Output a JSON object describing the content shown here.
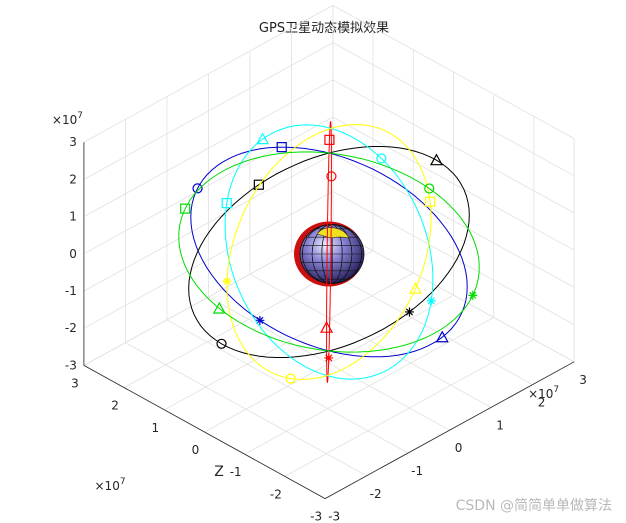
{
  "chart_data": {
    "type": "scatter",
    "title": "GPS卫星动态模拟效果",
    "xlabel": "",
    "ylabel": "",
    "zlabel": "Z",
    "axis_exponent": "×10^7",
    "xlim": [
      -3,
      3
    ],
    "ylim": [
      -3,
      3
    ],
    "zlim": [
      -3,
      3
    ],
    "ticks": [
      -3,
      -2,
      -1,
      0,
      1,
      2,
      3
    ],
    "grid": true,
    "orbit_radius": 2.66,
    "earth_radius": 0.64,
    "orbit_planes": [
      {
        "color": "#ff0000",
        "inclination": 90,
        "raan": 45,
        "markers": [
          {
            "symbol": "square",
            "angle": 80
          },
          {
            "symbol": "triangle",
            "angle": 175
          },
          {
            "symbol": "star",
            "angle": 265
          },
          {
            "symbol": "circle",
            "angle": 355
          }
        ]
      },
      {
        "color": "#0000cc",
        "inclination": 90,
        "raan": 110,
        "markers": [
          {
            "symbol": "square",
            "angle": 70
          },
          {
            "symbol": "circle",
            "angle": 18
          },
          {
            "symbol": "triangle",
            "angle": 215
          },
          {
            "symbol": "star",
            "angle": 300
          }
        ]
      },
      {
        "color": "#000000",
        "inclination": 90,
        "raan": 160,
        "markers": [
          {
            "symbol": "square",
            "angle": 60
          },
          {
            "symbol": "triangle",
            "angle": 140
          },
          {
            "symbol": "star",
            "angle": 235
          },
          {
            "symbol": "circle",
            "angle": 320
          }
        ]
      },
      {
        "color": "#00ffff",
        "inclination": 55,
        "raan": 20,
        "markers": [
          {
            "symbol": "square",
            "angle": 120
          },
          {
            "symbol": "triangle",
            "angle": 80
          },
          {
            "symbol": "star",
            "angle": 300
          },
          {
            "symbol": "circle",
            "angle": 10
          }
        ]
      },
      {
        "color": "#ffff00",
        "inclination": 55,
        "raan": 250,
        "markers": [
          {
            "symbol": "square",
            "angle": 60
          },
          {
            "symbol": "triangle",
            "angle": 20
          },
          {
            "symbol": "star",
            "angle": 230
          },
          {
            "symbol": "circle",
            "angle": 300
          }
        ]
      },
      {
        "color": "#00dd00",
        "inclination": 15,
        "raan": 10,
        "markers": [
          {
            "symbol": "square",
            "angle": 110
          },
          {
            "symbol": "triangle",
            "angle": 170
          },
          {
            "symbol": "star",
            "angle": 290
          },
          {
            "symbol": "circle",
            "angle": 355
          }
        ]
      }
    ]
  },
  "watermark": "CSDN @简简单单做算法"
}
